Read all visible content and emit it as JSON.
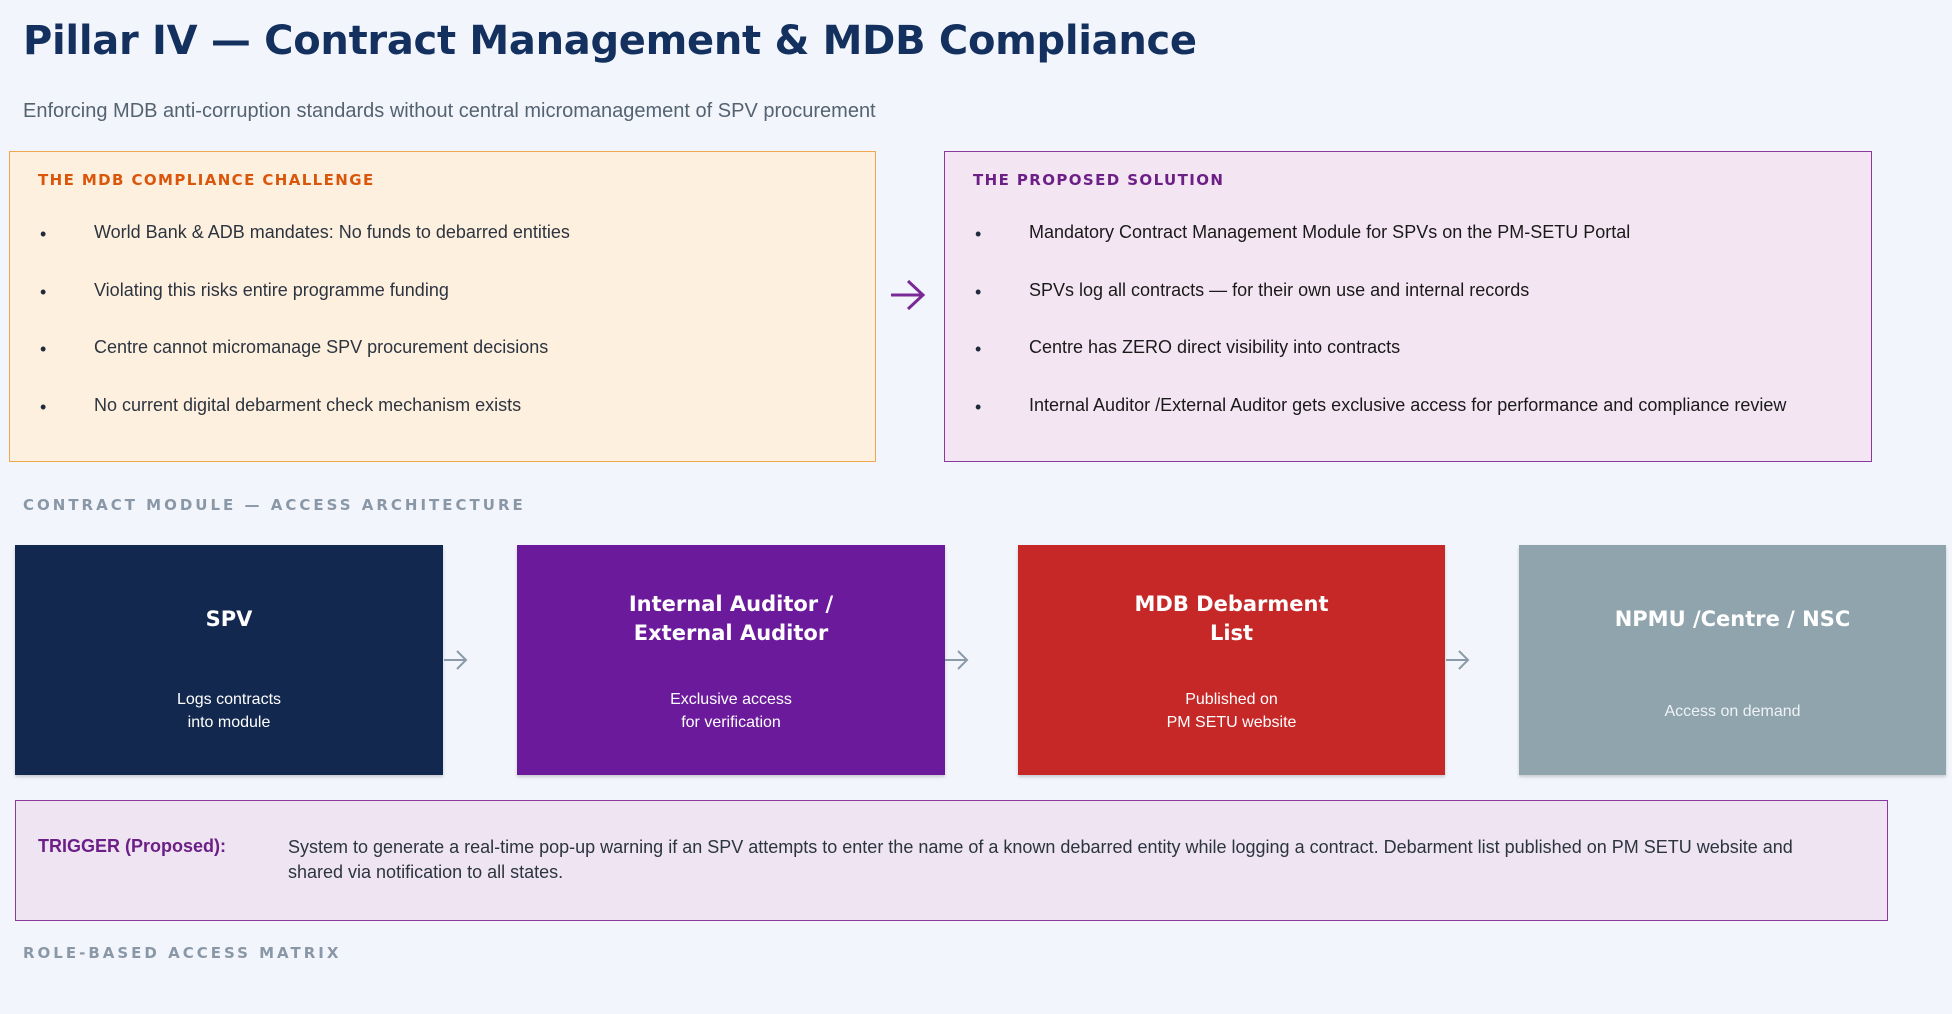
{
  "header": {
    "title": "Pillar IV — Contract Management & MDB Compliance",
    "subtitle": "Enforcing MDB anti-corruption standards without central micromanagement of SPV procurement"
  },
  "challenge": {
    "heading": "THE MDB COMPLIANCE CHALLENGE",
    "bullet_glyph": "•",
    "items": [
      "World Bank & ADB mandates: No funds to debarred entities",
      "Violating this risks entire programme funding",
      "Centre cannot micromanage SPV procurement decisions",
      "No current digital debarment check mechanism exists"
    ]
  },
  "solution": {
    "heading": "THE PROPOSED SOLUTION",
    "bullet_glyph": "•",
    "items": [
      "Mandatory Contract Management Module for SPVs  on the PM-SETU Portal",
      "SPVs log all contracts — for their own use and internal records",
      "Centre has ZERO direct visibility into contracts",
      "Internal Auditor /External Auditor gets exclusive access for performance and compliance review"
    ]
  },
  "architecture": {
    "label": "CONTRACT MODULE — ACCESS ARCHITECTURE",
    "boxes": [
      {
        "title": "SPV",
        "desc": "Logs contracts\ninto module",
        "color": "#12284f"
      },
      {
        "title": "Internal Auditor /\nExternal Auditor",
        "desc": "Exclusive access\nfor verification",
        "color": "#6a1a9a"
      },
      {
        "title": "MDB Debarment\nList",
        "desc": "Published on\nPM SETU website",
        "color": "#c62828"
      },
      {
        "title": "NPMU /Centre / NSC",
        "desc": "Access on demand",
        "color": "#90a4ae"
      }
    ]
  },
  "trigger": {
    "label": "TRIGGER (Proposed):",
    "text": "System to generate a real-time pop-up warning if an SPV attempts to enter the name of a known debarred entity while logging a contract. Debarment list published on PM SETU website and shared via notification to all states."
  },
  "matrix": {
    "label": "ROLE-BASED ACCESS MATRIX"
  },
  "colors": {
    "title": "#14305e",
    "challenge_accent": "#d9560a",
    "solution_accent": "#6c1f86",
    "flow_arrow": "#8a9aa8"
  },
  "icons": {
    "panel_arrow": "arrow-right-icon",
    "flow_arrow": "arrow-right-icon"
  }
}
